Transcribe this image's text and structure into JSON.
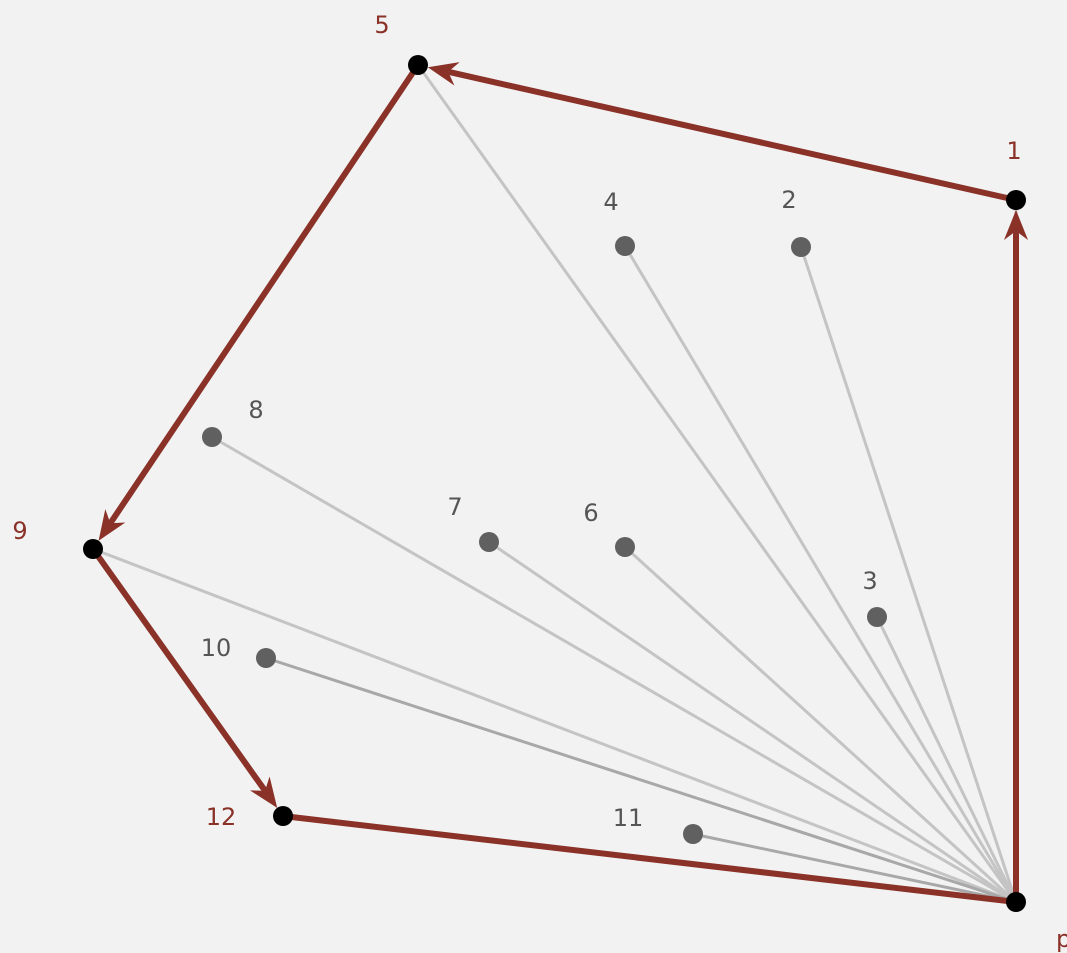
{
  "diagram": {
    "colors": {
      "hull": "#8a3128",
      "ray": "#c4c4c4",
      "hull_point": "#000000",
      "inner_point": "#606060",
      "inner_label": "#555555",
      "background": "#f2f2f2"
    },
    "anchor_label": "p",
    "points": [
      {
        "id": "p",
        "label": "p",
        "hull": true
      },
      {
        "id": "1",
        "label": "1",
        "hull": true
      },
      {
        "id": "2",
        "label": "2",
        "hull": false
      },
      {
        "id": "3",
        "label": "3",
        "hull": false
      },
      {
        "id": "4",
        "label": "4",
        "hull": false
      },
      {
        "id": "5",
        "label": "5",
        "hull": true
      },
      {
        "id": "6",
        "label": "6",
        "hull": false
      },
      {
        "id": "7",
        "label": "7",
        "hull": false
      },
      {
        "id": "8",
        "label": "8",
        "hull": false
      },
      {
        "id": "9",
        "label": "9",
        "hull": true
      },
      {
        "id": "10",
        "label": "10",
        "hull": false
      },
      {
        "id": "11",
        "label": "11",
        "hull": false
      },
      {
        "id": "12",
        "label": "12",
        "hull": true
      }
    ],
    "hull_edges": [
      {
        "from": "p",
        "to": "1"
      },
      {
        "from": "1",
        "to": "5"
      },
      {
        "from": "5",
        "to": "9"
      },
      {
        "from": "9",
        "to": "12"
      },
      {
        "from": "12",
        "to": "p"
      }
    ]
  }
}
